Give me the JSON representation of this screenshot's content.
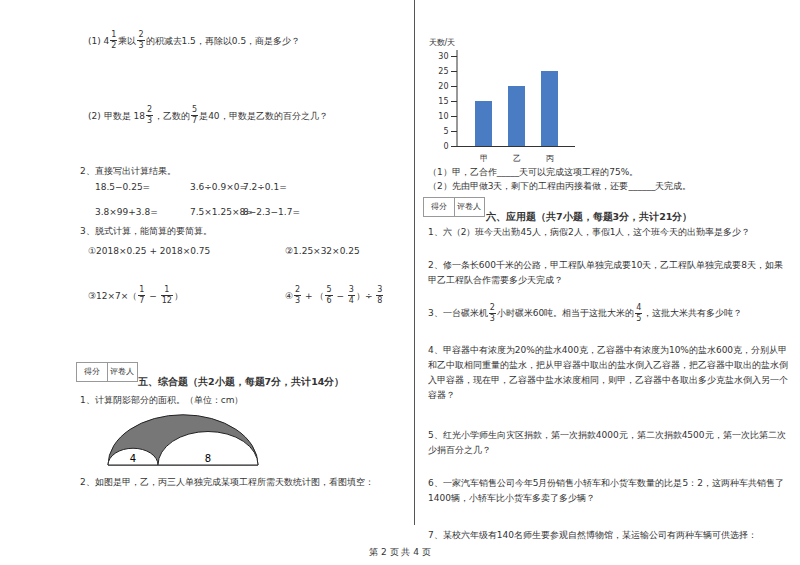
{
  "q_top": [
    [
      "(1) ",
      {
        "w": "4",
        "n": "1",
        "d": "2"
      },
      "乘以",
      {
        "n": "2",
        "d": "3"
      },
      "的积减去1.5，再除以0.5，商是多少？"
    ],
    [
      "(2) 甲数是 ",
      {
        "w": "18",
        "n": "2",
        "d": "3"
      },
      "，乙数的",
      {
        "n": "5",
        "d": "7"
      },
      "是40，甲数是乙数的百分之几？"
    ]
  ],
  "calc_title": "2、直接写出计算结果。",
  "calc": [
    [
      "18.5−0.25=",
      "3.6÷0.9×0=",
      "7.2÷0.1="
    ],
    [
      "3.8×99+3.8=",
      "7.5×1.25×8=",
      "8−2.3−1.7="
    ]
  ],
  "simplify_title": "3、脱式计算，能简算的要简算。",
  "simplify": [
    [
      [
        "①2018×0.25 + 2018×0.75"
      ],
      [
        "②1.25×32×0.25"
      ]
    ],
    [
      [
        "③12×7×（",
        {
          "n": "1",
          "d": "7"
        },
        " − ",
        {
          "n": "1",
          "d": "12"
        },
        "）"
      ],
      [
        "④",
        {
          "n": "2",
          "d": "3"
        },
        " + （",
        {
          "n": "5",
          "d": "6"
        },
        " − ",
        {
          "n": "3",
          "d": "4"
        },
        "）÷ ",
        {
          "n": "3",
          "d": "8"
        }
      ]
    ]
  ],
  "score_box": [
    "得分",
    "评卷人"
  ],
  "section5": {
    "heading": "五、综合题（共2小题，每题7分，共计14分）",
    "q1": "1、计算阴影部分的面积。（单位：cm）",
    "diagram_labels": [
      "4",
      "8"
    ],
    "q2": "2、如图是甲，乙，丙三人单独完成某项工程所需天数统计图，看图填空："
  },
  "chart_data": {
    "type": "bar",
    "y_label": "天数/天",
    "categories": [
      "甲",
      "乙",
      "丙"
    ],
    "values": [
      15,
      20,
      25
    ],
    "color": "#4a7cc4",
    "ylim": [
      0,
      30
    ],
    "yticks": [
      0,
      5,
      10,
      15,
      20,
      25,
      30
    ]
  },
  "chart_questions": [
    "（1）甲，乙合作_____天可以完成这项工程的75%。",
    "（2）先由甲做3天，剩下的工程由丙接着做，还要______天完成。"
  ],
  "section6": {
    "heading": "六、应用题（共7小题，每题3分，共计21分）",
    "questions": [
      [
        "1、六（2）班今天出勤45人，病假2人，事假1人，这个班今天的出勤率是多少？"
      ],
      [
        "2、修一条长600千米的公路，甲工程队单独完成要10天，乙工程队单独完成要8天，如果甲乙工程队合作需要多少天完成？"
      ],
      [
        "3、一台碾米机",
        {
          "n": "2",
          "d": "3"
        },
        "小时碾米60吨。相当于这批大米的",
        {
          "n": "4",
          "d": "5"
        },
        "，这批大米共有多少吨？"
      ],
      [
        "4、甲容器中有浓度为20%的盐水400克，乙容器中有浓度为10%的盐水600克，分别从甲和乙中取相同重量的盐水，把从甲容器中取出的盐水倒入乙容器，把乙容器中取出的盐水倒入甲容器，现在甲，乙容器中盐水浓度相同，则甲，乙容器中各取出多少克盐水倒入另一个容器？"
      ],
      [
        "5、红光小学师生向灾区捐款，第一次捐款4000元，第二次捐款4500元，第一次比第二次少捐百分之几？"
      ],
      [
        "6、一家汽车销售公司今年5月份销售小轿车和小货车数量的比是5：2，这两种车共销售了1400辆，小轿车比小货车多卖了多少辆？"
      ],
      [
        "7、某校六年级有140名师生要参观自然博物馆，某运输公司有两种车辆可供选择："
      ]
    ]
  },
  "footer": "第 2 页 共 4 页"
}
